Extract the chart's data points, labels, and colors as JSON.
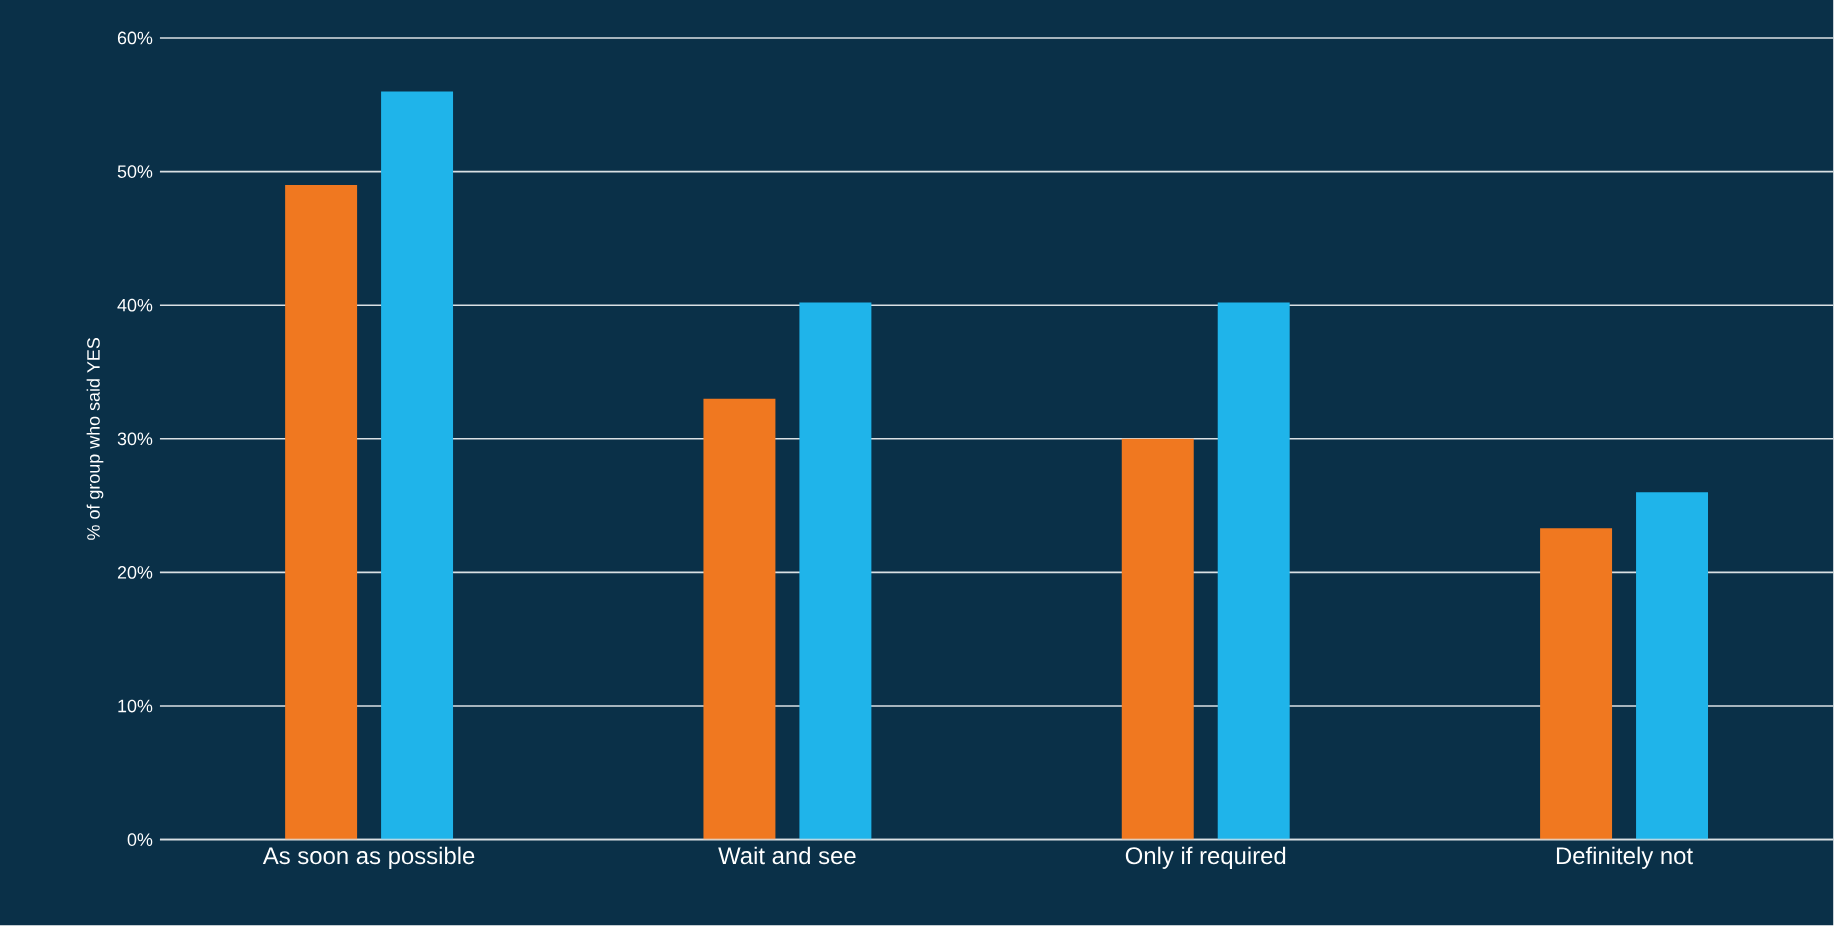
{
  "chart_data": {
    "type": "bar",
    "ylabel": "% of group who said YES",
    "categories": [
      "As soon as possible",
      "Wait and see",
      "Only if required",
      "Definitely not"
    ],
    "series": [
      {
        "color": "#f07820",
        "values": [
          49,
          33,
          30,
          23.3
        ]
      },
      {
        "color": "#1fb4ea",
        "values": [
          56,
          40.2,
          40.2,
          26
        ]
      }
    ],
    "ylim": [
      0,
      60
    ],
    "yticks": [
      {
        "value": 0,
        "label": "0%"
      },
      {
        "value": 10,
        "label": "10%"
      },
      {
        "value": 20,
        "label": "20%"
      },
      {
        "value": 30,
        "label": "30%"
      },
      {
        "value": 40,
        "label": "40%"
      },
      {
        "value": 50,
        "label": "50%"
      },
      {
        "value": 60,
        "label": "60%"
      }
    ],
    "grid": "y"
  }
}
